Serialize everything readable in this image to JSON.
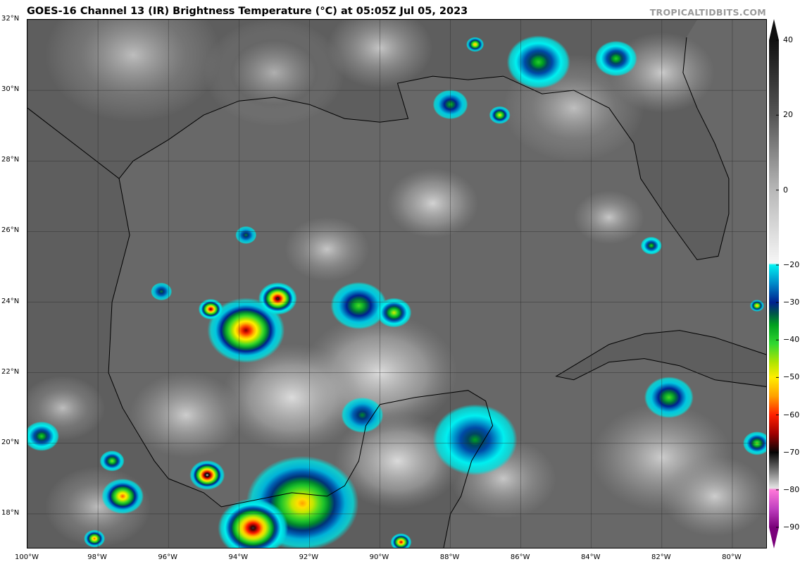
{
  "header": {
    "title": "GOES-16 Channel 13 (IR) Brightness Temperature (°C) at 05:05Z Jul 05, 2023",
    "credit": "TROPICALTIDBITS.COM"
  },
  "map": {
    "extent": {
      "lon_min": -100,
      "lon_max": -79,
      "lat_min": 17,
      "lat_max": 32
    },
    "lat_labels": [
      {
        "lat": 32,
        "label": "32°N"
      },
      {
        "lat": 30,
        "label": "30°N"
      },
      {
        "lat": 28,
        "label": "28°N"
      },
      {
        "lat": 26,
        "label": "26°N"
      },
      {
        "lat": 24,
        "label": "24°N"
      },
      {
        "lat": 22,
        "label": "22°N"
      },
      {
        "lat": 20,
        "label": "20°N"
      },
      {
        "lat": 18,
        "label": "18°N"
      }
    ],
    "lon_labels": [
      {
        "lon": -100,
        "label": "100°W"
      },
      {
        "lon": -98,
        "label": "98°W"
      },
      {
        "lon": -96,
        "label": "96°W"
      },
      {
        "lon": -94,
        "label": "94°W"
      },
      {
        "lon": -92,
        "label": "92°W"
      },
      {
        "lon": -90,
        "label": "90°W"
      },
      {
        "lon": -88,
        "label": "88°W"
      },
      {
        "lon": -86,
        "label": "86°W"
      },
      {
        "lon": -84,
        "label": "84°W"
      },
      {
        "lon": -82,
        "label": "82°W"
      },
      {
        "lon": -80,
        "label": "80°W"
      }
    ]
  },
  "colorbar": {
    "range": [
      -90,
      40
    ],
    "ticks": [
      40,
      20,
      0,
      -20,
      -30,
      -40,
      -50,
      -60,
      -70,
      -80,
      -90
    ],
    "tick_labels": [
      "40",
      "20",
      "0",
      "−20",
      "−30",
      "−40",
      "−50",
      "−60",
      "−70",
      "−80",
      "−90"
    ],
    "stops": [
      {
        "t": 40,
        "c": "#111111"
      },
      {
        "t": 20,
        "c": "#555555"
      },
      {
        "t": 0,
        "c": "#b8b8b8"
      },
      {
        "t": -19.5,
        "c": "#f6f6f6"
      },
      {
        "t": -20,
        "c": "#00f0f0"
      },
      {
        "t": -25,
        "c": "#0088c8"
      },
      {
        "t": -30,
        "c": "#00208f"
      },
      {
        "t": -33,
        "c": "#005848"
      },
      {
        "t": -36,
        "c": "#00a020"
      },
      {
        "t": -41,
        "c": "#30d830"
      },
      {
        "t": -46,
        "c": "#b0e400"
      },
      {
        "t": -50,
        "c": "#ffee00"
      },
      {
        "t": -55,
        "c": "#ffa000"
      },
      {
        "t": -60,
        "c": "#ff2000"
      },
      {
        "t": -65,
        "c": "#a00000"
      },
      {
        "t": -70,
        "c": "#050505"
      },
      {
        "t": -75,
        "c": "#777777"
      },
      {
        "t": -79.5,
        "c": "#e4e4e4"
      },
      {
        "t": -80,
        "c": "#ff78d8"
      },
      {
        "t": -85,
        "c": "#c040c0"
      },
      {
        "t": -90,
        "c": "#7a007a"
      }
    ]
  }
}
